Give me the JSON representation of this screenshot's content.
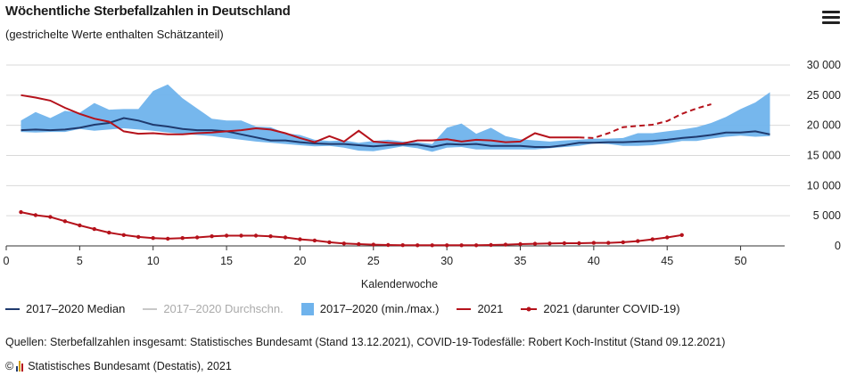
{
  "header": {
    "title": "Wöchentliche Sterbefallzahlen in Deutschland",
    "subtitle": "(gestrichelte Werte enthalten Schätzanteil)"
  },
  "menu_icon": "hamburger-menu-icon",
  "legend": [
    {
      "label": "2017–2020 Median",
      "color": "#1f3a6e",
      "kind": "line"
    },
    {
      "label": "2017–2020 Durchschn.",
      "color": "#c8c8c8",
      "kind": "line",
      "muted": true
    },
    {
      "label": "2017–2020 (min./max.)",
      "color": "#6fb3ec",
      "kind": "area"
    },
    {
      "label": "2021",
      "color": "#b5121b",
      "kind": "line"
    },
    {
      "label": "2021 (darunter COVID-19)",
      "color": "#b5121b",
      "kind": "line-marker"
    }
  ],
  "footer": {
    "source": "Quellen: Sterbefallzahlen insgesamt: Statistisches Bundesamt (Stand 13.12.2021), COVID-19-Todesfälle: Robert Koch-Institut (Stand 09.12.2021)",
    "copyright_symbol": "©",
    "credit": "Statistisches Bundesamt (Destatis), 2021"
  },
  "chart_data": {
    "type": "line",
    "title": "Wöchentliche Sterbefallzahlen in Deutschland",
    "subtitle": "(gestrichelte Werte enthalten Schätzanteil)",
    "xlabel": "Kalenderwoche",
    "ylabel": "",
    "xlim": [
      0,
      53
    ],
    "ylim": [
      0,
      30000
    ],
    "xticks": [
      0,
      5,
      10,
      15,
      20,
      25,
      30,
      35,
      40,
      45,
      50
    ],
    "yticks": [
      0,
      5000,
      10000,
      15000,
      20000,
      25000,
      30000
    ],
    "ytick_labels": [
      "0",
      "5 000",
      "10 000",
      "15 000",
      "20 000",
      "25 000",
      "30 000"
    ],
    "grid": "horizontal",
    "legend_position": "bottom",
    "colors": {
      "median": "#1f3a6e",
      "range": "#6fb3ec",
      "y2021": "#b5121b",
      "grid": "#d9d9d9",
      "axis": "#333333"
    },
    "range_2017_2020": {
      "name": "2017–2020 (min./max.)",
      "x": [
        1,
        2,
        3,
        4,
        5,
        6,
        7,
        8,
        9,
        10,
        11,
        12,
        13,
        14,
        15,
        16,
        17,
        18,
        19,
        20,
        21,
        22,
        23,
        24,
        25,
        26,
        27,
        28,
        29,
        30,
        31,
        32,
        33,
        34,
        35,
        36,
        37,
        38,
        39,
        40,
        41,
        42,
        43,
        44,
        45,
        46,
        47,
        48,
        49,
        50,
        51,
        52
      ],
      "min": [
        18900,
        18800,
        18900,
        18900,
        19400,
        19100,
        19300,
        19500,
        19300,
        19100,
        18800,
        18600,
        18400,
        18200,
        17900,
        17600,
        17300,
        17100,
        16900,
        16700,
        16500,
        16600,
        16300,
        15800,
        15700,
        16100,
        16500,
        16200,
        15600,
        16300,
        16400,
        16000,
        16000,
        16000,
        16000,
        16000,
        16200,
        16400,
        16600,
        17000,
        16900,
        16600,
        16600,
        16700,
        17000,
        17400,
        17400,
        17800,
        18100,
        18300,
        18100,
        18200
      ],
      "max": [
        20800,
        22200,
        21200,
        22400,
        22100,
        23700,
        22600,
        22700,
        22700,
        25700,
        26800,
        24500,
        22800,
        21100,
        20800,
        20800,
        19800,
        19700,
        18700,
        18400,
        17600,
        17400,
        17500,
        17100,
        17400,
        17600,
        17300,
        17200,
        16900,
        19600,
        20300,
        18600,
        19600,
        18200,
        17700,
        17500,
        17300,
        17500,
        17600,
        17800,
        17800,
        17900,
        18700,
        18700,
        19000,
        19300,
        19700,
        20400,
        21400,
        22700,
        23800,
        25500
      ]
    },
    "series": [
      {
        "name": "2017–2020 Median",
        "x": [
          1,
          2,
          3,
          4,
          5,
          6,
          7,
          8,
          9,
          10,
          11,
          12,
          13,
          14,
          15,
          16,
          17,
          18,
          19,
          20,
          21,
          22,
          23,
          24,
          25,
          26,
          27,
          28,
          29,
          30,
          31,
          32,
          33,
          34,
          35,
          36,
          37,
          38,
          39,
          40,
          41,
          42,
          43,
          44,
          45,
          46,
          47,
          48,
          49,
          50,
          51,
          52
        ],
        "values": [
          19200,
          19300,
          19200,
          19300,
          19600,
          20100,
          20400,
          21200,
          20800,
          20100,
          19800,
          19400,
          19200,
          19200,
          19000,
          18500,
          18000,
          17500,
          17500,
          17200,
          17000,
          16900,
          16900,
          16700,
          16500,
          16700,
          16800,
          16800,
          16400,
          16900,
          16800,
          16900,
          16600,
          16600,
          16600,
          16400,
          16400,
          16700,
          17100,
          17100,
          17200,
          17200,
          17300,
          17400,
          17600,
          17900,
          18100,
          18400,
          18800,
          18800,
          19000,
          18500
        ]
      },
      {
        "name": "2021",
        "x": [
          1,
          2,
          3,
          4,
          5,
          6,
          7,
          8,
          9,
          10,
          11,
          12,
          13,
          14,
          15,
          16,
          17,
          18,
          19,
          20,
          21,
          22,
          23,
          24,
          25,
          26,
          27,
          28,
          29,
          30,
          31,
          32,
          33,
          34,
          35,
          36,
          37,
          38,
          39
        ],
        "values": [
          25000,
          24600,
          24100,
          22900,
          21900,
          21100,
          20600,
          19000,
          18600,
          18700,
          18500,
          18500,
          18700,
          18800,
          19000,
          19200,
          19500,
          19300,
          18700,
          17900,
          17200,
          18200,
          17300,
          19100,
          17300,
          17100,
          17000,
          17500,
          17500,
          17700,
          17300,
          17600,
          17500,
          17200,
          17300,
          18700,
          18000,
          18000,
          18000
        ],
        "estimated": {
          "x": [
            39,
            40,
            41,
            42,
            43,
            44,
            45,
            46,
            47,
            48
          ],
          "values": [
            18000,
            17900,
            18700,
            19700,
            19900,
            20100,
            20700,
            21900,
            22800,
            23500
          ]
        }
      },
      {
        "name": "2021 (darunter COVID-19)",
        "x": [
          1,
          2,
          3,
          4,
          5,
          6,
          7,
          8,
          9,
          10,
          11,
          12,
          13,
          14,
          15,
          16,
          17,
          18,
          19,
          20,
          21,
          22,
          23,
          24,
          25,
          26,
          27,
          28,
          29,
          30,
          31,
          32,
          33,
          34,
          35,
          36,
          37,
          38,
          39,
          40,
          41,
          42,
          43,
          44,
          45,
          46
        ],
        "values": [
          5600,
          5100,
          4800,
          4100,
          3400,
          2800,
          2200,
          1800,
          1500,
          1300,
          1200,
          1300,
          1400,
          1600,
          1700,
          1700,
          1700,
          1600,
          1400,
          1100,
          900,
          600,
          400,
          300,
          200,
          150,
          120,
          100,
          100,
          100,
          100,
          100,
          150,
          200,
          300,
          350,
          400,
          450,
          450,
          500,
          500,
          600,
          800,
          1100,
          1400,
          1800
        ]
      }
    ]
  }
}
